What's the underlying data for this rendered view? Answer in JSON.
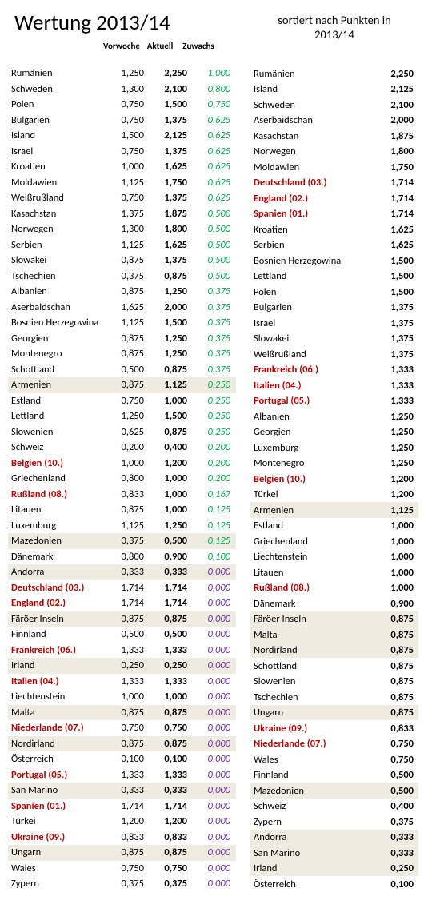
{
  "title": "Wertung 2013/14",
  "headers": {
    "vorwoche": "Vorwoche",
    "aktuell": "Aktuell",
    "zuwachs": "Zuwachs"
  },
  "rightTitle1": "sortiert nach Punkten in",
  "rightTitle2": "2013/14",
  "leftRows": [
    {
      "name": "Rumänien",
      "vor": "1,250",
      "akt": "2,250",
      "zuw": "1,000",
      "g": true
    },
    {
      "name": "Schweden",
      "vor": "1,300",
      "akt": "2,100",
      "zuw": "0,800",
      "g": true
    },
    {
      "name": "Polen",
      "vor": "0,750",
      "akt": "1,500",
      "zuw": "0,750",
      "g": true
    },
    {
      "name": "Bulgarien",
      "vor": "0,750",
      "akt": "1,375",
      "zuw": "0,625",
      "g": true
    },
    {
      "name": "Island",
      "vor": "1,500",
      "akt": "2,125",
      "zuw": "0,625",
      "g": true
    },
    {
      "name": "Israel",
      "vor": "0,750",
      "akt": "1,375",
      "zuw": "0,625",
      "g": true
    },
    {
      "name": "Kroatien",
      "vor": "1,000",
      "akt": "1,625",
      "zuw": "0,625",
      "g": true
    },
    {
      "name": "Moldawien",
      "vor": "1,125",
      "akt": "1,750",
      "zuw": "0,625",
      "g": true
    },
    {
      "name": "Weißrußland",
      "vor": "0,750",
      "akt": "1,375",
      "zuw": "0,625",
      "g": true
    },
    {
      "name": "Kasachstan",
      "vor": "1,375",
      "akt": "1,875",
      "zuw": "0,500",
      "g": true
    },
    {
      "name": "Norwegen",
      "vor": "1,300",
      "akt": "1,800",
      "zuw": "0,500",
      "g": true
    },
    {
      "name": "Serbien",
      "vor": "1,125",
      "akt": "1,625",
      "zuw": "0,500",
      "g": true
    },
    {
      "name": "Slowakei",
      "vor": "0,875",
      "akt": "1,375",
      "zuw": "0,500",
      "g": true
    },
    {
      "name": "Tschechien",
      "vor": "0,375",
      "akt": "0,875",
      "zuw": "0,500",
      "g": true
    },
    {
      "name": "Albanien",
      "vor": "0,875",
      "akt": "1,250",
      "zuw": "0,375",
      "g": true
    },
    {
      "name": "Aserbaidschan",
      "vor": "1,625",
      "akt": "2,000",
      "zuw": "0,375",
      "g": true
    },
    {
      "name": "Bosnien Herzegowina",
      "vor": "1,125",
      "akt": "1,500",
      "zuw": "0,375",
      "g": true
    },
    {
      "name": "Georgien",
      "vor": "0,875",
      "akt": "1,250",
      "zuw": "0,375",
      "g": true
    },
    {
      "name": "Montenegro",
      "vor": "0,875",
      "akt": "1,250",
      "zuw": "0,375",
      "g": true
    },
    {
      "name": "Schottland",
      "vor": "0,500",
      "akt": "0,875",
      "zuw": "0,375",
      "g": true
    },
    {
      "name": "Armenien",
      "vor": "0,875",
      "akt": "1,125",
      "zuw": "0,250",
      "g": true,
      "hl": true
    },
    {
      "name": "Estland",
      "vor": "0,750",
      "akt": "1,000",
      "zuw": "0,250",
      "g": true
    },
    {
      "name": "Lettland",
      "vor": "1,250",
      "akt": "1,500",
      "zuw": "0,250",
      "g": true
    },
    {
      "name": "Slowenien",
      "vor": "0,625",
      "akt": "0,875",
      "zuw": "0,250",
      "g": true
    },
    {
      "name": "Schweiz",
      "vor": "0,200",
      "akt": "0,400",
      "zuw": "0,200",
      "g": true
    },
    {
      "name": "Belgien (10.)",
      "vor": "1,000",
      "akt": "1,200",
      "zuw": "0,200",
      "g": true,
      "red": true
    },
    {
      "name": "Griechenland",
      "vor": "0,800",
      "akt": "1,000",
      "zuw": "0,200",
      "g": true
    },
    {
      "name": "Rußland (08.)",
      "vor": "0,833",
      "akt": "1,000",
      "zuw": "0,167",
      "g": true,
      "red": true
    },
    {
      "name": "Litauen",
      "vor": "0,875",
      "akt": "1,000",
      "zuw": "0,125",
      "g": true
    },
    {
      "name": "Luxemburg",
      "vor": "1,125",
      "akt": "1,250",
      "zuw": "0,125",
      "g": true
    },
    {
      "name": "Mazedonien",
      "vor": "0,375",
      "akt": "0,500",
      "zuw": "0,125",
      "g": true,
      "hl": true
    },
    {
      "name": "Dänemark",
      "vor": "0,800",
      "akt": "0,900",
      "zuw": "0,100",
      "g": true
    },
    {
      "name": "Andorra",
      "vor": "0,333",
      "akt": "0,333",
      "zuw": "0,000",
      "hl": true
    },
    {
      "name": "Deutschland (03.)",
      "vor": "1,714",
      "akt": "1,714",
      "zuw": "0,000",
      "red": true
    },
    {
      "name": "England (02.)",
      "vor": "1,714",
      "akt": "1,714",
      "zuw": "0,000",
      "red": true
    },
    {
      "name": "Färöer Inseln",
      "vor": "0,875",
      "akt": "0,875",
      "zuw": "0,000",
      "hl": true
    },
    {
      "name": "Finnland",
      "vor": "0,500",
      "akt": "0,500",
      "zuw": "0,000"
    },
    {
      "name": "Frankreich (06.)",
      "vor": "1,333",
      "akt": "1,333",
      "zuw": "0,000",
      "red": true
    },
    {
      "name": "Irland",
      "vor": "0,250",
      "akt": "0,250",
      "zuw": "0,000",
      "hl": true
    },
    {
      "name": "Italien (04.)",
      "vor": "1,333",
      "akt": "1,333",
      "zuw": "0,000",
      "red": true
    },
    {
      "name": "Liechtenstein",
      "vor": "1,000",
      "akt": "1,000",
      "zuw": "0,000"
    },
    {
      "name": "Malta",
      "vor": "0,875",
      "akt": "0,875",
      "zuw": "0,000",
      "hl": true
    },
    {
      "name": "Niederlande (07.)",
      "vor": "0,750",
      "akt": "0,750",
      "zuw": "0,000",
      "red": true
    },
    {
      "name": "Nordirland",
      "vor": "0,875",
      "akt": "0,875",
      "zuw": "0,000",
      "hl": true
    },
    {
      "name": "Österreich",
      "vor": "0,100",
      "akt": "0,100",
      "zuw": "0,000"
    },
    {
      "name": "Portugal (05.)",
      "vor": "1,333",
      "akt": "1,333",
      "zuw": "0,000",
      "red": true
    },
    {
      "name": "San Marino",
      "vor": "0,333",
      "akt": "0,333",
      "zuw": "0,000",
      "hl": true
    },
    {
      "name": "Spanien (01.)",
      "vor": "1,714",
      "akt": "1,714",
      "zuw": "0,000",
      "red": true
    },
    {
      "name": "Türkei",
      "vor": "1,200",
      "akt": "1,200",
      "zuw": "0,000"
    },
    {
      "name": "Ukraine (09.)",
      "vor": "0,833",
      "akt": "0,833",
      "zuw": "0,000",
      "red": true
    },
    {
      "name": "Ungarn",
      "vor": "0,875",
      "akt": "0,875",
      "zuw": "0,000",
      "hl": true
    },
    {
      "name": "Wales",
      "vor": "0,750",
      "akt": "0,750",
      "zuw": "0,000"
    },
    {
      "name": "Zypern",
      "vor": "0,375",
      "akt": "0,375",
      "zuw": "0,000"
    }
  ],
  "rightRows": [
    {
      "name": "Rumänien",
      "val": "2,250"
    },
    {
      "name": "Island",
      "val": "2,125"
    },
    {
      "name": "Schweden",
      "val": "2,100"
    },
    {
      "name": "Aserbaidschan",
      "val": "2,000"
    },
    {
      "name": "Kasachstan",
      "val": "1,875"
    },
    {
      "name": "Norwegen",
      "val": "1,800"
    },
    {
      "name": "Moldawien",
      "val": "1,750"
    },
    {
      "name": "Deutschland (03.)",
      "val": "1,714",
      "red": true
    },
    {
      "name": "England (02.)",
      "val": "1,714",
      "red": true
    },
    {
      "name": "Spanien (01.)",
      "val": "1,714",
      "red": true
    },
    {
      "name": "Kroatien",
      "val": "1,625"
    },
    {
      "name": "Serbien",
      "val": "1,625"
    },
    {
      "name": "Bosnien Herzegowina",
      "val": "1,500"
    },
    {
      "name": "Lettland",
      "val": "1,500"
    },
    {
      "name": "Polen",
      "val": "1,500"
    },
    {
      "name": "Bulgarien",
      "val": "1,375"
    },
    {
      "name": "Israel",
      "val": "1,375"
    },
    {
      "name": "Slowakei",
      "val": "1,375"
    },
    {
      "name": "Weißrußland",
      "val": "1,375"
    },
    {
      "name": "Frankreich (06.)",
      "val": "1,333",
      "red": true
    },
    {
      "name": "Italien (04.)",
      "val": "1,333",
      "red": true
    },
    {
      "name": "Portugal (05.)",
      "val": "1,333",
      "red": true
    },
    {
      "name": "Albanien",
      "val": "1,250"
    },
    {
      "name": "Georgien",
      "val": "1,250"
    },
    {
      "name": "Luxemburg",
      "val": "1,250"
    },
    {
      "name": "Montenegro",
      "val": "1,250"
    },
    {
      "name": "Belgien (10.)",
      "val": "1,200",
      "red": true
    },
    {
      "name": "Türkei",
      "val": "1,200"
    },
    {
      "name": "Armenien",
      "val": "1,125",
      "hl": true
    },
    {
      "name": "Estland",
      "val": "1,000"
    },
    {
      "name": "Griechenland",
      "val": "1,000"
    },
    {
      "name": "Liechtenstein",
      "val": "1,000"
    },
    {
      "name": "Litauen",
      "val": "1,000"
    },
    {
      "name": "Rußland (08.)",
      "val": "1,000",
      "red": true
    },
    {
      "name": "Dänemark",
      "val": "0,900"
    },
    {
      "name": "Färöer Inseln",
      "val": "0,875",
      "hl": true
    },
    {
      "name": "Malta",
      "val": "0,875",
      "hl": true
    },
    {
      "name": "Nordirland",
      "val": "0,875",
      "hl": true
    },
    {
      "name": "Schottland",
      "val": "0,875"
    },
    {
      "name": "Slowenien",
      "val": "0,875"
    },
    {
      "name": "Tschechien",
      "val": "0,875"
    },
    {
      "name": "Ungarn",
      "val": "0,875",
      "hl": true
    },
    {
      "name": "Ukraine (09.)",
      "val": "0,833",
      "red": true
    },
    {
      "name": "Niederlande (07.)",
      "val": "0,750",
      "red": true
    },
    {
      "name": "Wales",
      "val": "0,750"
    },
    {
      "name": "Finnland",
      "val": "0,500"
    },
    {
      "name": "Mazedonien",
      "val": "0,500",
      "hl": true
    },
    {
      "name": "Schweiz",
      "val": "0,400"
    },
    {
      "name": "Zypern",
      "val": "0,375"
    },
    {
      "name": "Andorra",
      "val": "0,333",
      "hl": true
    },
    {
      "name": "San Marino",
      "val": "0,333",
      "hl": true
    },
    {
      "name": "Irland",
      "val": "0,250",
      "hl": true
    },
    {
      "name": "Österreich",
      "val": "0,100"
    }
  ]
}
